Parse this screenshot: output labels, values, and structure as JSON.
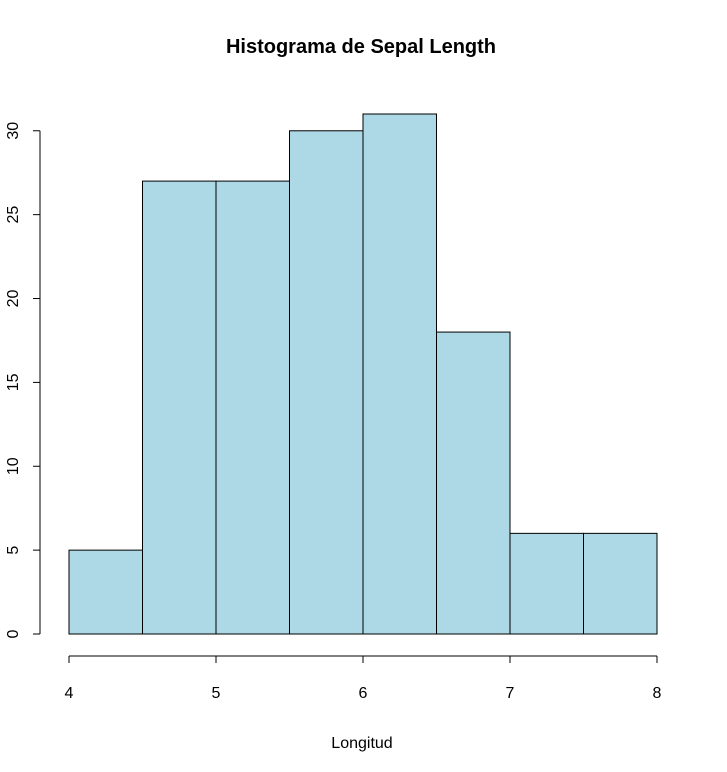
{
  "chart_data": {
    "type": "bar",
    "title": "Histograma de Sepal Length",
    "xlabel": "Longitud",
    "ylabel": "",
    "bins": [
      {
        "start": 4.0,
        "end": 4.5,
        "count": 5
      },
      {
        "start": 4.5,
        "end": 5.0,
        "count": 27
      },
      {
        "start": 5.0,
        "end": 5.5,
        "count": 27
      },
      {
        "start": 5.5,
        "end": 6.0,
        "count": 30
      },
      {
        "start": 6.0,
        "end": 6.5,
        "count": 31
      },
      {
        "start": 6.5,
        "end": 7.0,
        "count": 18
      },
      {
        "start": 7.0,
        "end": 7.5,
        "count": 6
      },
      {
        "start": 7.5,
        "end": 8.0,
        "count": 6
      }
    ],
    "xlim": [
      4,
      8
    ],
    "ylim": [
      0,
      31
    ],
    "xticks": [
      "4",
      "5",
      "6",
      "7",
      "8"
    ],
    "yticks": [
      "0",
      "5",
      "10",
      "15",
      "20",
      "25",
      "30"
    ],
    "bar_color": "#add8e6",
    "grid": false
  }
}
